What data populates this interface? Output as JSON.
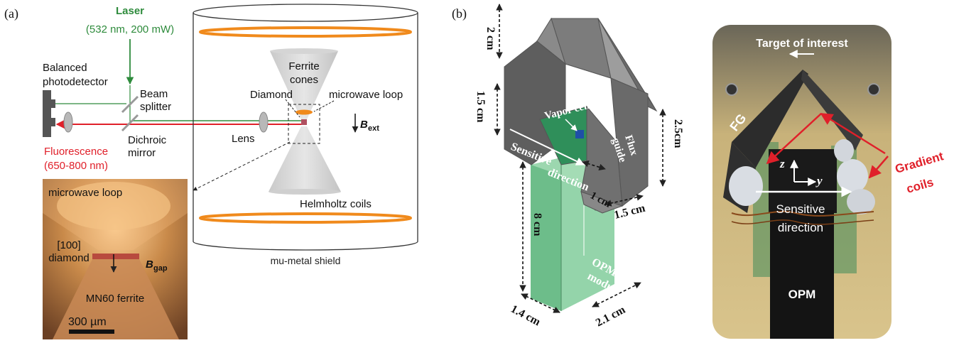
{
  "panel_a": {
    "label": "(a)",
    "laser": {
      "title": "Laser",
      "spec": "(532 nm, 200 mW)"
    },
    "balanced_photodetector": [
      "Balanced",
      "photodetector"
    ],
    "beam_splitter": [
      "Beam",
      "splitter"
    ],
    "dichroic_mirror": [
      "Dichroic",
      "mirror"
    ],
    "fluorescence": [
      "Fluorescence",
      "(650-800 nm)"
    ],
    "lens": "Lens",
    "diamond": "Diamond",
    "ferrite_cones": [
      "Ferrite",
      "cones"
    ],
    "microwave_loop": "microwave loop",
    "b_ext": {
      "symbol": "B",
      "sub": "ext"
    },
    "helmholtz": "Helmholtz coils",
    "shield": "mu-metal shield",
    "inset": {
      "microwave_loop": "microwave loop",
      "diamond": [
        "[100]",
        "diamond"
      ],
      "b_gap": {
        "symbol": "B",
        "sub": "gap"
      },
      "ferrite": "MN60 ferrite",
      "scale": "300 µm"
    }
  },
  "panel_b": {
    "label": "(b)",
    "dims": {
      "top": "2 cm",
      "left": "1.5 cm",
      "right": "2.5cm",
      "flux_bottom": "1.5 cm",
      "gap": "1 cm",
      "height": "8 cm",
      "base_left": "1.4 cm",
      "base_right": "2.1 cm"
    },
    "vapor_cell": "Vapor cell",
    "sensitive_direction": [
      "Sensitive",
      "direction"
    ],
    "flux_guide": [
      "Flux",
      "guide"
    ],
    "opm_module": [
      "OPM",
      "module"
    ],
    "photo": {
      "target": "Target of interest",
      "fg": "FG",
      "axis_z": "z",
      "axis_y": "y",
      "gradient": [
        "Gradient",
        "coils"
      ],
      "sensitive": [
        "Sensitive",
        "direction"
      ],
      "opm": "OPM"
    }
  },
  "colors": {
    "laser_green": "#2e8b3c",
    "fluorescence_red": "#e0202a",
    "coil_orange": "#f08a1c",
    "opm_green": "#7fc99a",
    "gradient_red": "#e0202a"
  }
}
